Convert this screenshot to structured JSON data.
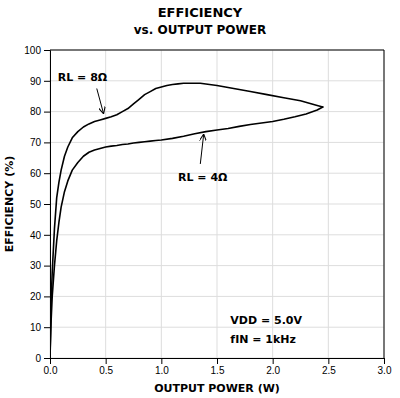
{
  "chart_data": {
    "type": "line",
    "title": "EFFICIENCY",
    "subtitle": "vs. OUTPUT POWER",
    "x_label": "OUTPUT POWER (W)",
    "y_label": "EFFICIENCY (%)",
    "xlim": [
      0,
      3.0
    ],
    "ylim": [
      0,
      100
    ],
    "xticks": [
      {
        "value": 0,
        "label": "0.0"
      },
      {
        "value": 0.5,
        "label": "0.5"
      },
      {
        "value": 1.0,
        "label": "1.0"
      },
      {
        "value": 1.5,
        "label": "1.5"
      },
      {
        "value": 2.0,
        "label": "2.0"
      },
      {
        "value": 2.5,
        "label": "2.5"
      },
      {
        "value": 3.0,
        "label": "3.0"
      }
    ],
    "yticks": [
      0,
      10,
      20,
      30,
      40,
      50,
      60,
      70,
      80,
      90,
      100
    ],
    "grid": true,
    "series": [
      {
        "color": "#000000",
        "x": [
          0.0,
          0.01,
          0.02,
          0.04,
          0.06,
          0.08,
          0.1,
          0.13,
          0.16,
          0.2,
          0.25,
          0.3,
          0.35,
          0.4,
          0.45,
          0.5,
          0.55,
          0.6,
          0.65,
          0.7,
          0.75,
          0.8,
          0.85,
          0.9,
          0.95,
          1.0,
          1.05,
          1.1,
          1.15,
          1.2,
          1.25,
          1.3,
          1.35,
          1.35,
          1.5,
          1.65,
          1.8,
          1.95,
          2.1,
          2.25,
          2.4,
          2.45
        ],
        "values": [
          0.0,
          18.0,
          28.0,
          42.0,
          52.0,
          57.0,
          61.0,
          65.5,
          68.5,
          71.5,
          73.5,
          75.0,
          76.0,
          76.8,
          77.3,
          77.8,
          78.3,
          79.0,
          80.0,
          81.0,
          82.5,
          84.0,
          85.5,
          86.5,
          87.5,
          88.0,
          88.5,
          88.8,
          89.0,
          89.2,
          89.2,
          89.2,
          89.2,
          89.2,
          88.5,
          87.5,
          86.5,
          85.5,
          84.5,
          83.5,
          82.0,
          81.5
        ]
      },
      {
        "color": "#000000",
        "x": [
          0.0,
          0.01,
          0.02,
          0.04,
          0.06,
          0.08,
          0.1,
          0.13,
          0.16,
          0.2,
          0.25,
          0.3,
          0.35,
          0.4,
          0.45,
          0.5,
          0.55,
          0.6,
          0.65,
          0.7,
          0.75,
          0.8,
          0.85,
          0.9,
          0.95,
          1.0,
          1.1,
          1.2,
          1.3,
          1.4,
          1.5,
          1.6,
          1.7,
          1.8,
          1.9,
          2.0,
          2.1,
          2.2,
          2.3,
          2.4,
          2.45
        ],
        "values": [
          0.0,
          12.0,
          20.0,
          30.0,
          38.0,
          44.0,
          49.0,
          54.0,
          57.5,
          61.0,
          63.5,
          65.5,
          66.8,
          67.5,
          68.0,
          68.5,
          68.8,
          69.0,
          69.3,
          69.5,
          69.8,
          70.0,
          70.2,
          70.4,
          70.6,
          70.8,
          71.3,
          72.0,
          72.8,
          73.5,
          74.0,
          74.5,
          75.2,
          75.8,
          76.3,
          76.8,
          77.5,
          78.3,
          79.2,
          80.5,
          81.5
        ]
      }
    ],
    "annotations": [
      {
        "text": "VDD = 5.0V",
        "x": 1.62,
        "y": 12.0
      },
      {
        "text": "fIN = 1kHz",
        "x": 1.62,
        "y": 6.0
      },
      {
        "text": "RL = 8Ω",
        "x": 0.07,
        "y": 91.0,
        "arrow_from": [
          0.42,
          87.5
        ],
        "arrow_to": [
          0.48,
          79.5
        ]
      },
      {
        "text": "RL = 4Ω",
        "x": 1.15,
        "y": 58.5,
        "arrow_from": [
          1.35,
          63.0
        ],
        "arrow_to": [
          1.38,
          72.5
        ]
      }
    ]
  }
}
